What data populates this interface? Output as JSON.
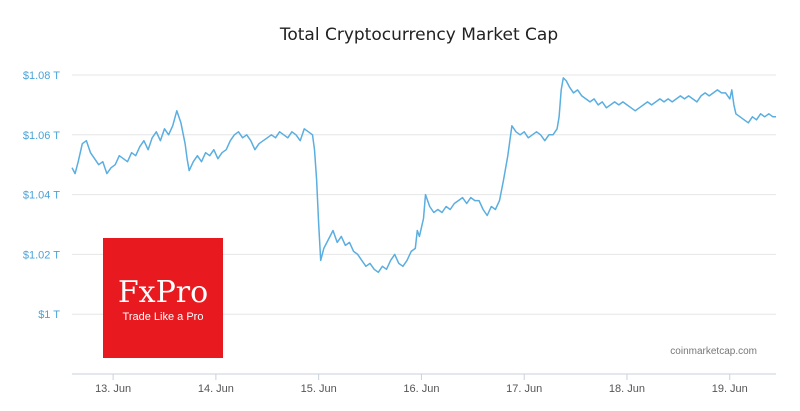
{
  "chart_data": {
    "type": "line",
    "title": "Total Cryptocurrency Market Cap",
    "xlabel": "",
    "ylabel": "",
    "y_unit_suffix": " T",
    "y_prefix": "$",
    "ylim": [
      0.98,
      1.085
    ],
    "xlim": [
      12.6,
      19.45
    ],
    "y_ticks": [
      {
        "value": 1.0,
        "label": "$1 T"
      },
      {
        "value": 1.02,
        "label": "$1.02 T"
      },
      {
        "value": 1.04,
        "label": "$1.04 T"
      },
      {
        "value": 1.06,
        "label": "$1.06 T"
      },
      {
        "value": 1.08,
        "label": "$1.08 T"
      }
    ],
    "x_ticks": [
      {
        "value": 13.0,
        "label": "13. Jun"
      },
      {
        "value": 14.0,
        "label": "14. Jun"
      },
      {
        "value": 15.0,
        "label": "15. Jun"
      },
      {
        "value": 16.0,
        "label": "16. Jun"
      },
      {
        "value": 17.0,
        "label": "17. Jun"
      },
      {
        "value": 18.0,
        "label": "18. Jun"
      },
      {
        "value": 19.0,
        "label": "19. Jun"
      }
    ],
    "grid": true,
    "line_color": "#5aaee0",
    "series": [
      {
        "points": [
          [
            12.6,
            1.049
          ],
          [
            12.63,
            1.047
          ],
          [
            12.66,
            1.051
          ],
          [
            12.7,
            1.057
          ],
          [
            12.74,
            1.058
          ],
          [
            12.78,
            1.054
          ],
          [
            12.82,
            1.052
          ],
          [
            12.86,
            1.05
          ],
          [
            12.9,
            1.051
          ],
          [
            12.94,
            1.047
          ],
          [
            12.98,
            1.049
          ],
          [
            13.02,
            1.05
          ],
          [
            13.06,
            1.053
          ],
          [
            13.1,
            1.052
          ],
          [
            13.14,
            1.051
          ],
          [
            13.18,
            1.054
          ],
          [
            13.22,
            1.053
          ],
          [
            13.26,
            1.056
          ],
          [
            13.3,
            1.058
          ],
          [
            13.34,
            1.055
          ],
          [
            13.38,
            1.059
          ],
          [
            13.42,
            1.061
          ],
          [
            13.46,
            1.058
          ],
          [
            13.5,
            1.062
          ],
          [
            13.54,
            1.06
          ],
          [
            13.58,
            1.063
          ],
          [
            13.62,
            1.068
          ],
          [
            13.66,
            1.064
          ],
          [
            13.7,
            1.057
          ],
          [
            13.72,
            1.052
          ],
          [
            13.74,
            1.048
          ],
          [
            13.78,
            1.051
          ],
          [
            13.82,
            1.053
          ],
          [
            13.86,
            1.051
          ],
          [
            13.9,
            1.054
          ],
          [
            13.94,
            1.053
          ],
          [
            13.98,
            1.055
          ],
          [
            14.02,
            1.052
          ],
          [
            14.06,
            1.054
          ],
          [
            14.1,
            1.055
          ],
          [
            14.14,
            1.058
          ],
          [
            14.18,
            1.06
          ],
          [
            14.22,
            1.061
          ],
          [
            14.26,
            1.059
          ],
          [
            14.3,
            1.06
          ],
          [
            14.34,
            1.058
          ],
          [
            14.38,
            1.055
          ],
          [
            14.42,
            1.057
          ],
          [
            14.46,
            1.058
          ],
          [
            14.5,
            1.059
          ],
          [
            14.54,
            1.06
          ],
          [
            14.58,
            1.059
          ],
          [
            14.62,
            1.061
          ],
          [
            14.66,
            1.06
          ],
          [
            14.7,
            1.059
          ],
          [
            14.74,
            1.061
          ],
          [
            14.78,
            1.06
          ],
          [
            14.82,
            1.058
          ],
          [
            14.86,
            1.062
          ],
          [
            14.9,
            1.061
          ],
          [
            14.94,
            1.06
          ],
          [
            14.96,
            1.055
          ],
          [
            14.98,
            1.045
          ],
          [
            15.0,
            1.03
          ],
          [
            15.02,
            1.018
          ],
          [
            15.05,
            1.022
          ],
          [
            15.08,
            1.024
          ],
          [
            15.11,
            1.026
          ],
          [
            15.14,
            1.028
          ],
          [
            15.18,
            1.024
          ],
          [
            15.22,
            1.026
          ],
          [
            15.26,
            1.023
          ],
          [
            15.3,
            1.024
          ],
          [
            15.34,
            1.021
          ],
          [
            15.38,
            1.02
          ],
          [
            15.42,
            1.018
          ],
          [
            15.46,
            1.016
          ],
          [
            15.5,
            1.017
          ],
          [
            15.54,
            1.015
          ],
          [
            15.58,
            1.014
          ],
          [
            15.62,
            1.016
          ],
          [
            15.66,
            1.015
          ],
          [
            15.7,
            1.018
          ],
          [
            15.74,
            1.02
          ],
          [
            15.78,
            1.017
          ],
          [
            15.82,
            1.016
          ],
          [
            15.86,
            1.018
          ],
          [
            15.9,
            1.021
          ],
          [
            15.94,
            1.022
          ],
          [
            15.96,
            1.028
          ],
          [
            15.98,
            1.026
          ],
          [
            16.02,
            1.032
          ],
          [
            16.04,
            1.04
          ],
          [
            16.08,
            1.036
          ],
          [
            16.12,
            1.034
          ],
          [
            16.16,
            1.035
          ],
          [
            16.2,
            1.034
          ],
          [
            16.24,
            1.036
          ],
          [
            16.28,
            1.035
          ],
          [
            16.32,
            1.037
          ],
          [
            16.36,
            1.038
          ],
          [
            16.4,
            1.039
          ],
          [
            16.44,
            1.037
          ],
          [
            16.48,
            1.039
          ],
          [
            16.52,
            1.038
          ],
          [
            16.56,
            1.038
          ],
          [
            16.6,
            1.035
          ],
          [
            16.64,
            1.033
          ],
          [
            16.68,
            1.036
          ],
          [
            16.72,
            1.035
          ],
          [
            16.76,
            1.038
          ],
          [
            16.8,
            1.045
          ],
          [
            16.84,
            1.053
          ],
          [
            16.88,
            1.063
          ],
          [
            16.92,
            1.061
          ],
          [
            16.96,
            1.06
          ],
          [
            17.0,
            1.061
          ],
          [
            17.04,
            1.059
          ],
          [
            17.08,
            1.06
          ],
          [
            17.12,
            1.061
          ],
          [
            17.16,
            1.06
          ],
          [
            17.2,
            1.058
          ],
          [
            17.24,
            1.06
          ],
          [
            17.28,
            1.06
          ],
          [
            17.32,
            1.062
          ],
          [
            17.34,
            1.066
          ],
          [
            17.36,
            1.075
          ],
          [
            17.38,
            1.079
          ],
          [
            17.41,
            1.078
          ],
          [
            17.44,
            1.076
          ],
          [
            17.48,
            1.074
          ],
          [
            17.52,
            1.075
          ],
          [
            17.56,
            1.073
          ],
          [
            17.6,
            1.072
          ],
          [
            17.64,
            1.071
          ],
          [
            17.68,
            1.072
          ],
          [
            17.72,
            1.07
          ],
          [
            17.76,
            1.071
          ],
          [
            17.8,
            1.069
          ],
          [
            17.84,
            1.07
          ],
          [
            17.88,
            1.071
          ],
          [
            17.92,
            1.07
          ],
          [
            17.96,
            1.071
          ],
          [
            18.0,
            1.07
          ],
          [
            18.04,
            1.069
          ],
          [
            18.08,
            1.068
          ],
          [
            18.12,
            1.069
          ],
          [
            18.16,
            1.07
          ],
          [
            18.2,
            1.071
          ],
          [
            18.24,
            1.07
          ],
          [
            18.28,
            1.071
          ],
          [
            18.32,
            1.072
          ],
          [
            18.36,
            1.071
          ],
          [
            18.4,
            1.072
          ],
          [
            18.44,
            1.071
          ],
          [
            18.48,
            1.072
          ],
          [
            18.52,
            1.073
          ],
          [
            18.56,
            1.072
          ],
          [
            18.6,
            1.073
          ],
          [
            18.64,
            1.072
          ],
          [
            18.68,
            1.071
          ],
          [
            18.72,
            1.073
          ],
          [
            18.76,
            1.074
          ],
          [
            18.8,
            1.073
          ],
          [
            18.84,
            1.074
          ],
          [
            18.88,
            1.075
          ],
          [
            18.92,
            1.074
          ],
          [
            18.96,
            1.074
          ],
          [
            19.0,
            1.072
          ],
          [
            19.02,
            1.075
          ],
          [
            19.04,
            1.07
          ],
          [
            19.06,
            1.067
          ],
          [
            19.1,
            1.066
          ],
          [
            19.14,
            1.065
          ],
          [
            19.18,
            1.064
          ],
          [
            19.22,
            1.066
          ],
          [
            19.26,
            1.065
          ],
          [
            19.3,
            1.067
          ],
          [
            19.34,
            1.066
          ],
          [
            19.38,
            1.067
          ],
          [
            19.42,
            1.066
          ],
          [
            19.45,
            1.066
          ]
        ]
      }
    ]
  },
  "logo": {
    "brand": "FxPro",
    "tagline": "Trade Like a Pro",
    "color": "#e8191f"
  },
  "credit": "coinmarketcap.com"
}
